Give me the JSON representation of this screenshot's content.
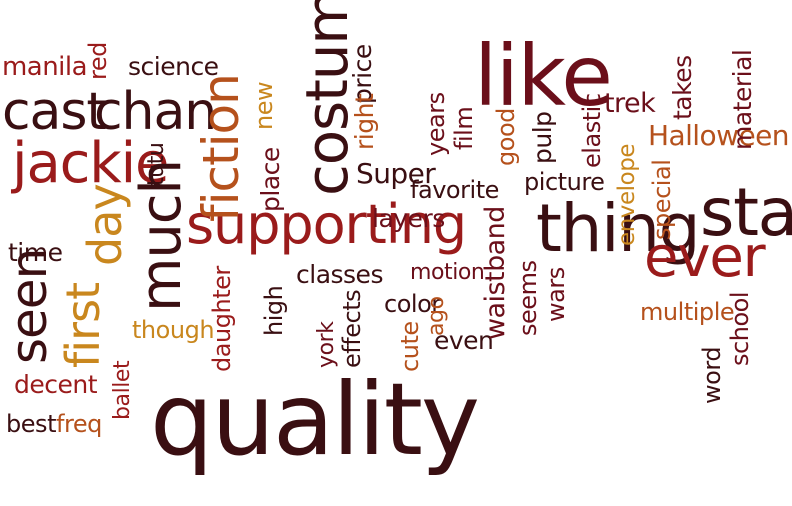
{
  "words": {
    "manila": "manila",
    "red": "red",
    "science": "science",
    "cast": "cast",
    "chan": "chan",
    "costume": "costume",
    "price": "price",
    "like": "like",
    "trek": "trek",
    "takes": "takes",
    "material": "material",
    "halloween": "Halloween",
    "new": "new",
    "right": "right",
    "years": "years",
    "film": "film",
    "good": "good",
    "pulp": "pulp",
    "elastic": "elastic",
    "jackie": "jackie",
    "tutu": "tutu",
    "fiction": "fiction",
    "place": "place",
    "super": "Super",
    "favorite": "favorite",
    "picture": "picture",
    "envelope": "envelope",
    "special": "special",
    "star": "star",
    "much": "much",
    "day": "day",
    "first": "first",
    "supporting": "supporting",
    "layers": "layers",
    "thing": "thing",
    "ever": "ever",
    "time": "time",
    "classes": "classes",
    "waistband": "waistband",
    "motion": "motion",
    "seen": "seen",
    "high": "high",
    "color": "color",
    "ago": "ago",
    "seems": "seems",
    "wars": "wars",
    "multiple": "multiple",
    "though": "though",
    "daughter": "daughter",
    "effects": "effects",
    "cute": "cute",
    "even": "even",
    "york": "york",
    "school": "school",
    "decent": "decent",
    "ballet": "ballet",
    "quality": "quality",
    "word": "word",
    "best": "best",
    "freq": "freq"
  },
  "colors": {
    "dark_brown": "#3a0f12",
    "maroon": "#6b0f1a",
    "red": "#9a1b1b",
    "orange": "#b5511c",
    "gold": "#c9871e"
  }
}
